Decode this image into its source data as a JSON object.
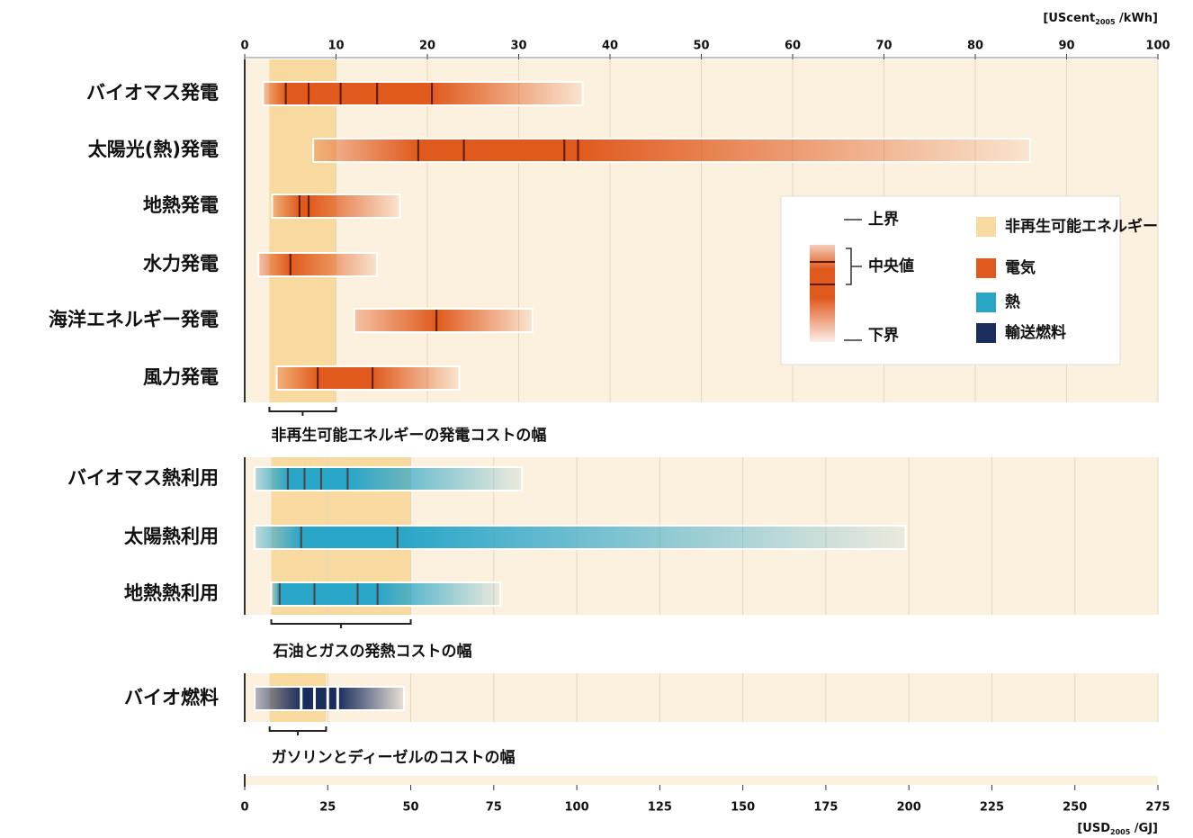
{
  "chart_data": {
    "type": "range",
    "xlim": [
      0,
      100
    ],
    "xticks": [
      0,
      10,
      20,
      30,
      40,
      50,
      60,
      70,
      80,
      90,
      100
    ],
    "x2lim": [
      0,
      275
    ],
    "x2ticks": [
      0,
      25,
      50,
      75,
      100,
      125,
      150,
      175,
      200,
      225,
      250,
      275
    ],
    "x_label": [
      "[UScent",
      "2005",
      " /kWh]"
    ],
    "x2_label": [
      "[USD",
      "2005",
      " /GJ]"
    ],
    "band_color": "#f8d9a0",
    "background": "#fcf0de",
    "groups": [
      {
        "axis": "x",
        "color": "#e05a1e",
        "band": [
          2.7,
          10
        ],
        "band_label": "非再生可能エネルギーの発電コストの幅",
        "series": [
          {
            "name": "バイオマス発電",
            "low": 2,
            "high": 37,
            "medians": [
              4.5,
              7,
              10.5,
              14.5,
              20.5
            ]
          },
          {
            "name": "太陽光(熱)発電",
            "low": 7.5,
            "high": 86,
            "medians": [
              19,
              24,
              35,
              36.5
            ]
          },
          {
            "name": "地熱発電",
            "low": 3,
            "high": 17,
            "medians": [
              6,
              7
            ]
          },
          {
            "name": "水力発電",
            "low": 1.5,
            "high": 14.5,
            "medians": [
              5
            ]
          },
          {
            "name": "海洋エネルギー発電",
            "low": 12,
            "high": 31.5,
            "medians": [
              21
            ]
          },
          {
            "name": "風力発電",
            "low": 3.5,
            "high": 23.5,
            "medians": [
              8,
              14
            ]
          }
        ]
      },
      {
        "axis": "x2",
        "color": "#29a5c8",
        "band": [
          8,
          50
        ],
        "band_label": "石油とガスの発熱コストの幅",
        "series": [
          {
            "name": "バイオマス熱利用",
            "low": 3,
            "high": 83.5,
            "medians": [
              13,
              18,
              23,
              31
            ]
          },
          {
            "name": "太陽熱利用",
            "low": 3,
            "high": 199,
            "medians": [
              17,
              46
            ]
          },
          {
            "name": "地熱熱利用",
            "low": 8,
            "high": 77,
            "medians": [
              10.5,
              21,
              34,
              40
            ]
          }
        ]
      },
      {
        "axis": "x2",
        "color": "#1a2e5e",
        "band": [
          7.5,
          24.5
        ],
        "band_label": "ガソリンとディーゼルのコストの幅",
        "series": [
          {
            "name": "バイオ燃料",
            "low": 3,
            "high": 48,
            "medians": [
              17,
              21,
              25,
              28
            ]
          }
        ]
      }
    ],
    "legend": {
      "upper": "上界",
      "median": "中央値",
      "lower": "下界",
      "entries": [
        {
          "name": "非再生可能エネルギー",
          "color": "#f8d9a0"
        },
        {
          "name": "電気",
          "color": "#e05a1e"
        },
        {
          "name": "熱",
          "color": "#29a5c8"
        },
        {
          "name": "輸送燃料",
          "color": "#1a2e5e"
        }
      ]
    }
  }
}
